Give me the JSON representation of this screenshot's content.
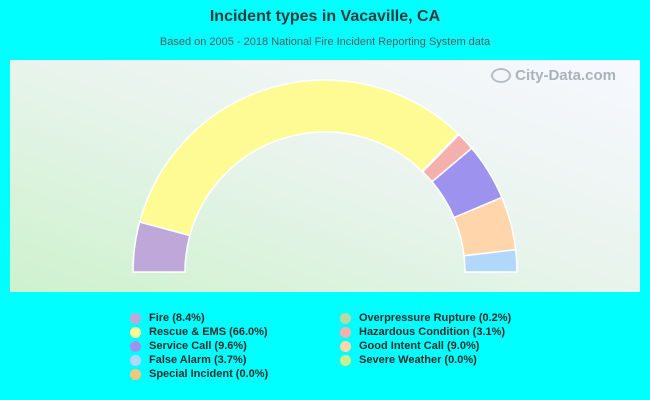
{
  "header": {
    "title": "Incident types in Vacaville, CA",
    "subtitle": "Based on 2005 - 2018 National Fire Incident Reporting System data"
  },
  "watermark": {
    "text": "City-Data.com",
    "icon": "city-data-logo-icon"
  },
  "chart_data": {
    "type": "pie",
    "variant": "half-donut",
    "title": "Incident types in Vacaville, CA",
    "subtitle": "Based on 2005 - 2018 National Fire Incident Reporting System data",
    "legend_placement": "bottom",
    "slices": [
      {
        "label": "Fire (8.4%)",
        "value": 8.4,
        "color": "#c0a7d9"
      },
      {
        "label": "Rescue & EMS (66.0%)",
        "value": 66.0,
        "color": "#fffb94"
      },
      {
        "label": "Overpressure Rupture (0.2%)",
        "value": 0.2,
        "color": "#b8d8a8"
      },
      {
        "label": "Hazardous Condition (3.1%)",
        "value": 3.1,
        "color": "#f5b0ae"
      },
      {
        "label": "Service Call (9.6%)",
        "value": 9.6,
        "color": "#9d93ef"
      },
      {
        "label": "Good Intent Call (9.0%)",
        "value": 9.0,
        "color": "#ffd6ab"
      },
      {
        "label": "False Alarm (3.7%)",
        "value": 3.7,
        "color": "#b1d7fb"
      },
      {
        "label": "Special Incident (0.0%)",
        "value": 0.0,
        "color": "#f4c77d"
      },
      {
        "label": "Severe Weather (0.0%)",
        "value": 0.0,
        "color": "#c8ef8c"
      }
    ],
    "legend": [
      {
        "label": "Fire (8.4%)",
        "color": "#c0a7d9"
      },
      {
        "label": "Rescue & EMS (66.0%)",
        "color": "#fffb94"
      },
      {
        "label": "Service Call (9.6%)",
        "color": "#9d93ef"
      },
      {
        "label": "False Alarm (3.7%)",
        "color": "#b1d7fb"
      },
      {
        "label": "Special Incident (0.0%)",
        "color": "#f4c77d"
      },
      {
        "label": "Overpressure Rupture (0.2%)",
        "color": "#b8d8a8"
      },
      {
        "label": "Hazardous Condition (3.1%)",
        "color": "#f5b0ae"
      },
      {
        "label": "Good Intent Call (9.0%)",
        "color": "#ffd6ab"
      },
      {
        "label": "Severe Weather (0.0%)",
        "color": "#c8ef8c"
      }
    ]
  }
}
